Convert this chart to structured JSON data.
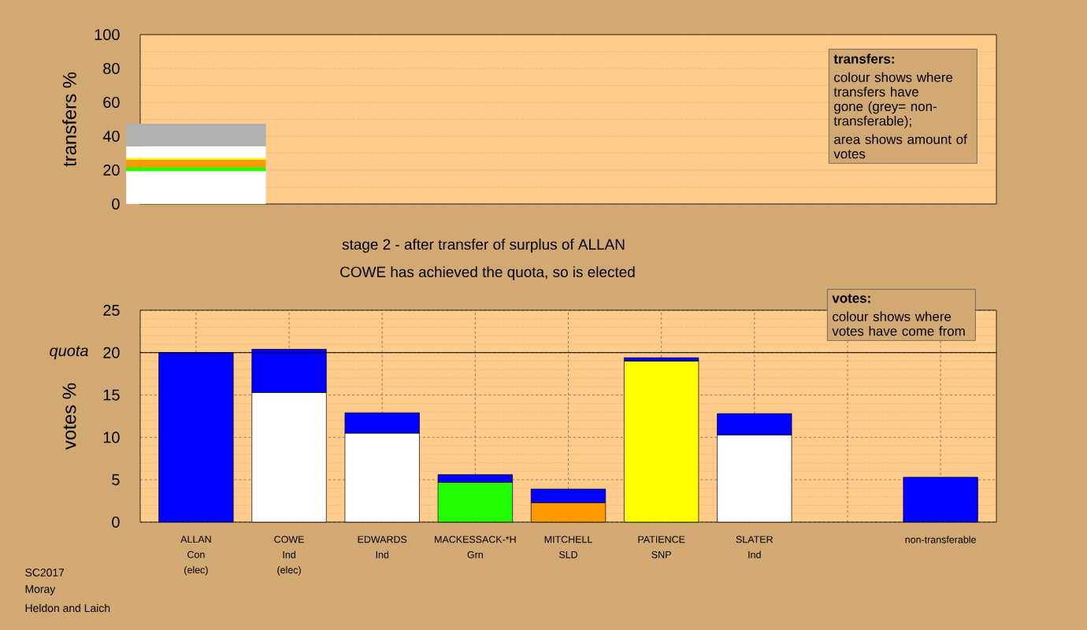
{
  "chart_data": [
    {
      "type": "bar",
      "stacked": true,
      "categories": [
        null,
        null,
        null,
        null,
        null,
        null,
        null,
        null,
        null
      ],
      "ylabel": "transfers %",
      "ylim": [
        0,
        100
      ],
      "yticks": [
        0,
        20,
        40,
        60,
        80,
        100
      ],
      "grid": true,
      "tick_labels": "y",
      "series": [
        {
          "color": "#ffffff",
          "values": [
            19.4,
            null,
            null,
            null,
            null,
            null,
            null,
            null,
            null
          ]
        },
        {
          "color": "#22ff00",
          "values": [
            2.3,
            null,
            null,
            null,
            null,
            null,
            null,
            null,
            null
          ]
        },
        {
          "color": "#ff9900",
          "values": [
            4.3,
            null,
            null,
            null,
            null,
            null,
            null,
            null,
            null
          ]
        },
        {
          "color": "#ffff00",
          "values": [
            1.1,
            null,
            null,
            null,
            null,
            null,
            null,
            null,
            null
          ]
        },
        {
          "color": "#ffffff",
          "values": [
            7.0,
            null,
            null,
            null,
            null,
            null,
            null,
            null,
            null
          ]
        },
        {
          "color": "#b0b0b0",
          "values": [
            13.3,
            null,
            null,
            null,
            null,
            null,
            null,
            null,
            null
          ]
        }
      ],
      "annotations": [
        "transfers:",
        "colour shows where transfers have gone (grey= non-transferable);",
        "area shows amount of votes"
      ]
    },
    {
      "type": "bar",
      "stacked": true,
      "title": "stage 2 - after transfer of surplus of ALLAN",
      "subtitle": "COWE has achieved the quota, so is elected",
      "categories": [
        "ALLAN Con (elec)",
        "COWE Ind (elec)",
        "EDWARDS Ind",
        "MACKESSACK-*H Grn",
        "MITCHELL SLD",
        "PATIENCE SNP",
        "SLATER Ind",
        null,
        "non-transferable"
      ],
      "ylabel": "votes %",
      "ylim": [
        0,
        25
      ],
      "yticks": [
        0,
        5,
        10,
        15,
        20,
        25
      ],
      "grid": true,
      "ref_lines": [
        {
          "axis": "y",
          "value": 20,
          "label": "quota"
        }
      ],
      "series": [
        {
          "colors": [
            "#0000ff",
            "#ffffff",
            "#ffffff",
            "#22ff00",
            "#ff9900",
            "#ffff00",
            "#ffffff",
            null,
            null
          ],
          "values": [
            20.0,
            15.3,
            10.5,
            4.7,
            2.3,
            19.0,
            10.3,
            null,
            null
          ]
        },
        {
          "color": "#0000ff",
          "values": [
            null,
            5.1,
            2.4,
            0.9,
            1.6,
            0.4,
            2.5,
            null,
            5.3
          ]
        }
      ],
      "annotations": [
        "votes:",
        "colour shows where votes have come from",
        "SC2017",
        "Moray",
        "Heldon and Laich"
      ]
    }
  ]
}
